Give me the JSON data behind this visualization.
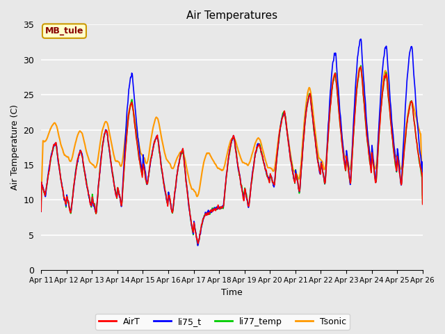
{
  "title": "Air Temperatures",
  "xlabel": "Time",
  "ylabel": "Air Temperature (C)",
  "ylim": [
    0,
    35
  ],
  "xlim": [
    0,
    360
  ],
  "bg_color": "#e8e8e8",
  "grid_color": "white",
  "annotation_text": "MB_tule",
  "annotation_bg": "#ffffcc",
  "annotation_edge": "#cc9900",
  "annotation_text_color": "#880000",
  "tick_labels": [
    "Apr 11",
    "Apr 12",
    "Apr 13",
    "Apr 14",
    "Apr 15",
    "Apr 16",
    "Apr 17",
    "Apr 18",
    "Apr 19",
    "Apr 20",
    "Apr 21",
    "Apr 22",
    "Apr 23",
    "Apr 24",
    "Apr 25",
    "Apr 26"
  ],
  "tick_positions": [
    0,
    24,
    48,
    72,
    96,
    120,
    144,
    168,
    192,
    216,
    240,
    264,
    288,
    312,
    336,
    360
  ],
  "series": {
    "AirT": {
      "color": "#ff0000",
      "lw": 1.2,
      "zorder": 4
    },
    "li75_t": {
      "color": "#0000ff",
      "lw": 1.2,
      "zorder": 3
    },
    "li77_temp": {
      "color": "#00cc00",
      "lw": 1.2,
      "zorder": 2
    },
    "Tsonic": {
      "color": "#ff9900",
      "lw": 1.5,
      "zorder": 1
    }
  }
}
